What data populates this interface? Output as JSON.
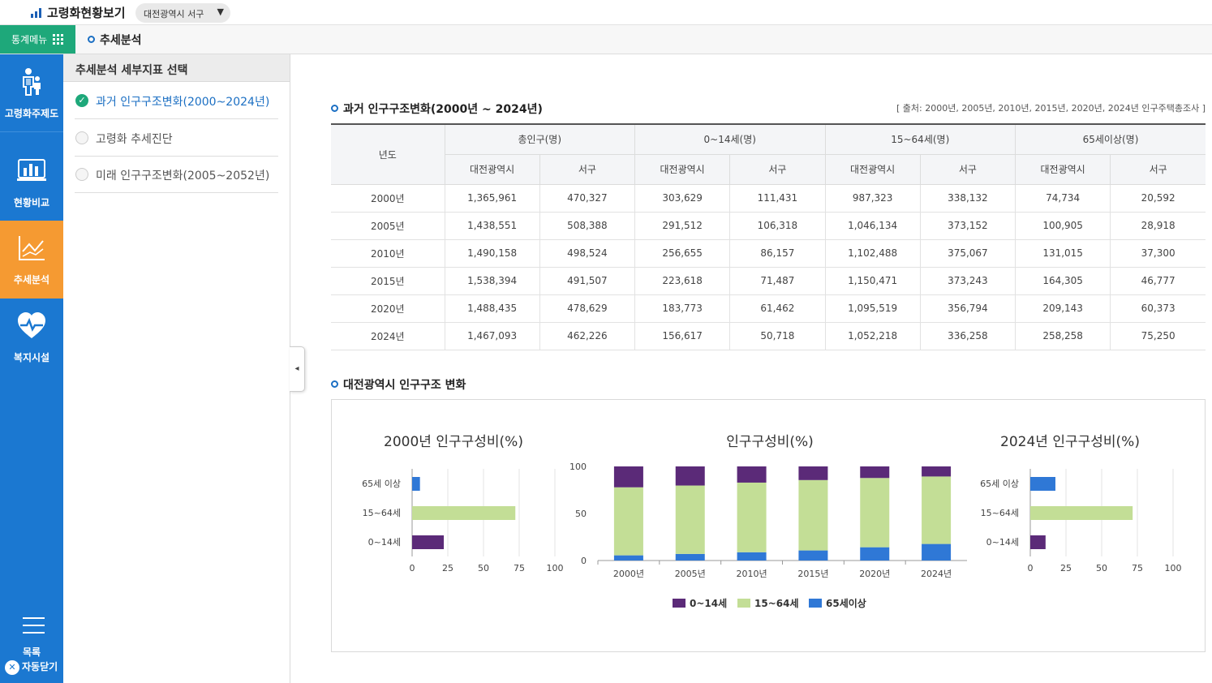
{
  "app": {
    "title": "고령화현황보기",
    "region": "대전광역시 서구"
  },
  "menubar": {
    "stat_menu": "통계메뉴",
    "breadcrumb": "추세분석"
  },
  "nav": {
    "items": [
      {
        "label": "고령화주제도",
        "icon": "elderly-people-icon"
      },
      {
        "label": "현황비교",
        "icon": "bar-chart-icon"
      },
      {
        "label": "추세분석",
        "icon": "line-chart-icon"
      },
      {
        "label": "복지시설",
        "icon": "heart-pulse-icon"
      }
    ],
    "list_label": "목록",
    "auto_close": "자동닫기"
  },
  "subpanel": {
    "title": "추세분석 세부지표 선택",
    "options": [
      "과거 인구구조변화(2000~2024년)",
      "고령화 추세진단",
      "미래 인구구조변화(2005~2052년)"
    ],
    "selected": 0
  },
  "table_section": {
    "title": "과거 인구구조변화(2000년 ~ 2024년)",
    "source": "[ 출처: 2000년, 2005년, 2010년, 2015년, 2020년, 2024년 인구주택총조사 ]",
    "header_year": "년도",
    "groups": [
      "총인구(명)",
      "0~14세(명)",
      "15~64세(명)",
      "65세이상(명)"
    ],
    "subheaders": [
      "대전광역시",
      "서구"
    ],
    "rows": [
      [
        "2000년",
        "1,365,961",
        "470,327",
        "303,629",
        "111,431",
        "987,323",
        "338,132",
        "74,734",
        "20,592"
      ],
      [
        "2005년",
        "1,438,551",
        "508,388",
        "291,512",
        "106,318",
        "1,046,134",
        "373,152",
        "100,905",
        "28,918"
      ],
      [
        "2010년",
        "1,490,158",
        "498,524",
        "256,655",
        "86,157",
        "1,102,488",
        "375,067",
        "131,015",
        "37,300"
      ],
      [
        "2015년",
        "1,538,394",
        "491,507",
        "223,618",
        "71,487",
        "1,150,471",
        "373,243",
        "164,305",
        "46,777"
      ],
      [
        "2020년",
        "1,488,435",
        "478,629",
        "183,773",
        "61,462",
        "1,095,519",
        "356,794",
        "209,143",
        "60,373"
      ],
      [
        "2024년",
        "1,467,093",
        "462,226",
        "156,617",
        "50,718",
        "1,052,218",
        "336,258",
        "258,258",
        "75,250"
      ]
    ]
  },
  "chart_section": {
    "title": "대전광역시 인구구조 변화"
  },
  "colors": {
    "young": "#5b2a78",
    "working": "#c3de96",
    "elderly": "#2f78d6"
  },
  "chart_data": [
    {
      "type": "bar",
      "orientation": "horizontal",
      "title": "2000년 인구구성비(%)",
      "categories": [
        "65세 이상",
        "15~64세",
        "0~14세"
      ],
      "values": [
        5.5,
        72.3,
        22.2
      ],
      "xlim": [
        0,
        100
      ],
      "xticks": [
        "0",
        "25",
        "50",
        "75",
        "100"
      ]
    },
    {
      "type": "bar",
      "stacked": true,
      "title": "인구구성비(%)",
      "categories": [
        "2000년",
        "2005년",
        "2010년",
        "2015년",
        "2020년",
        "2024년"
      ],
      "series": [
        {
          "name": "0~14세",
          "values": [
            22.2,
            20.3,
            17.2,
            14.5,
            12.3,
            10.7
          ]
        },
        {
          "name": "15~64세",
          "values": [
            72.3,
            72.7,
            74.0,
            74.8,
            73.6,
            71.7
          ]
        },
        {
          "name": "65세이상",
          "values": [
            5.5,
            7.0,
            8.8,
            10.7,
            14.1,
            17.6
          ]
        }
      ],
      "ylim": [
        0,
        100
      ],
      "yticks": [
        "0",
        "50",
        "100"
      ]
    },
    {
      "type": "bar",
      "orientation": "horizontal",
      "title": "2024년 인구구성비(%)",
      "categories": [
        "65세 이상",
        "15~64세",
        "0~14세"
      ],
      "values": [
        17.6,
        71.7,
        10.7
      ],
      "xlim": [
        0,
        100
      ],
      "xticks": [
        "0",
        "25",
        "50",
        "75",
        "100"
      ]
    }
  ]
}
